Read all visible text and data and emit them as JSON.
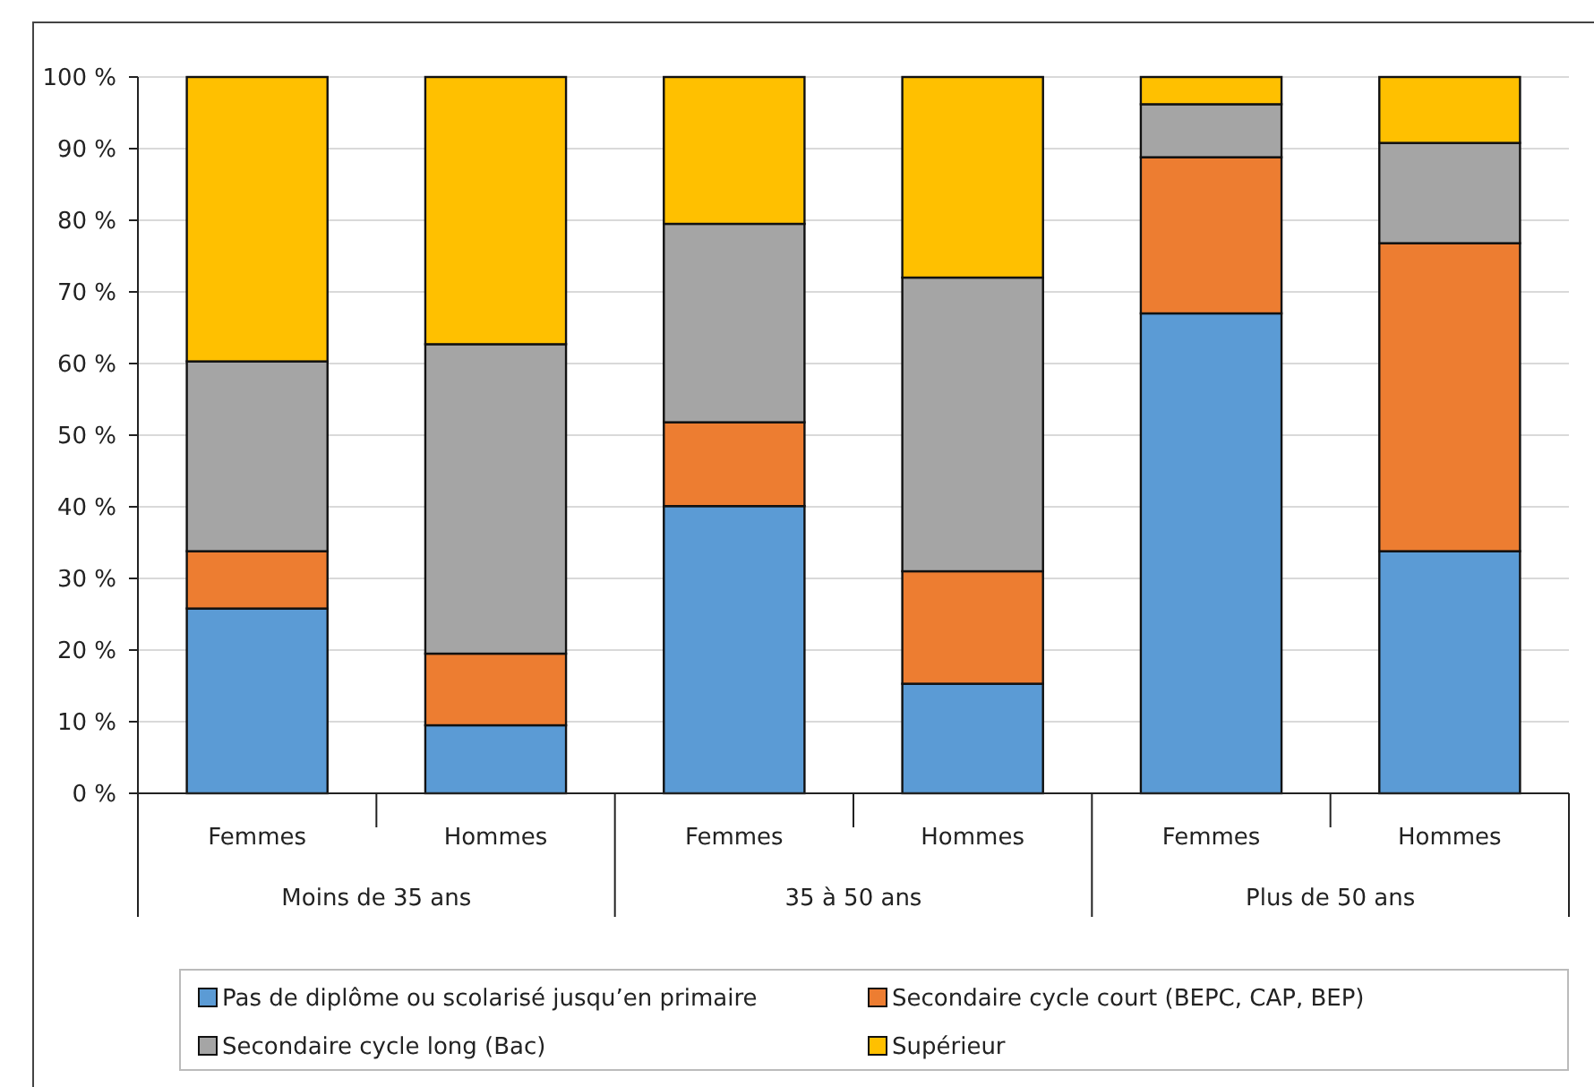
{
  "chart_data": {
    "type": "bar",
    "stacked": true,
    "categories": [
      "Femmes",
      "Hommes",
      "Femmes",
      "Hommes",
      "Femmes",
      "Hommes"
    ],
    "series": [
      {
        "name": "Pas de diplôme ou scolarisé jusqu’en primaire",
        "color": "#5b9bd5",
        "values": [
          25.8,
          9.5,
          40.1,
          15.3,
          67,
          33.8
        ]
      },
      {
        "name": "Secondaire cycle court (BEPC, CAP, BEP)",
        "color": "#ed7d31",
        "values": [
          8,
          10,
          11.7,
          15.7,
          21.8,
          43
        ]
      },
      {
        "name": "Secondaire cycle long (Bac)",
        "color": "#a5a5a5",
        "values": [
          26.5,
          43.2,
          27.7,
          41,
          7.4,
          14
        ]
      },
      {
        "name": "Supérieur",
        "color": "#ffc000",
        "values": [
          39.7,
          37.3,
          20.5,
          28,
          3.8,
          9.2
        ]
      }
    ],
    "annotations": [
      "Moins de 35 ans",
      "35 à 50 ans",
      "Plus de 50 ans"
    ],
    "ylim": [
      0,
      100
    ],
    "yticks": [
      {
        "value": 0,
        "label": "0 %"
      },
      {
        "value": 10,
        "label": "10 %"
      },
      {
        "value": 20,
        "label": "20 %"
      },
      {
        "value": 30,
        "label": "30 %"
      },
      {
        "value": 40,
        "label": "40 %"
      },
      {
        "value": 50,
        "label": "50 %"
      },
      {
        "value": 60,
        "label": "60 %"
      },
      {
        "value": 70,
        "label": "70 %"
      },
      {
        "value": 80,
        "label": "80 %"
      },
      {
        "value": 90,
        "label": "90 %"
      },
      {
        "value": 100,
        "label": "100 %"
      }
    ],
    "grid": "y",
    "legend": "bottom"
  }
}
